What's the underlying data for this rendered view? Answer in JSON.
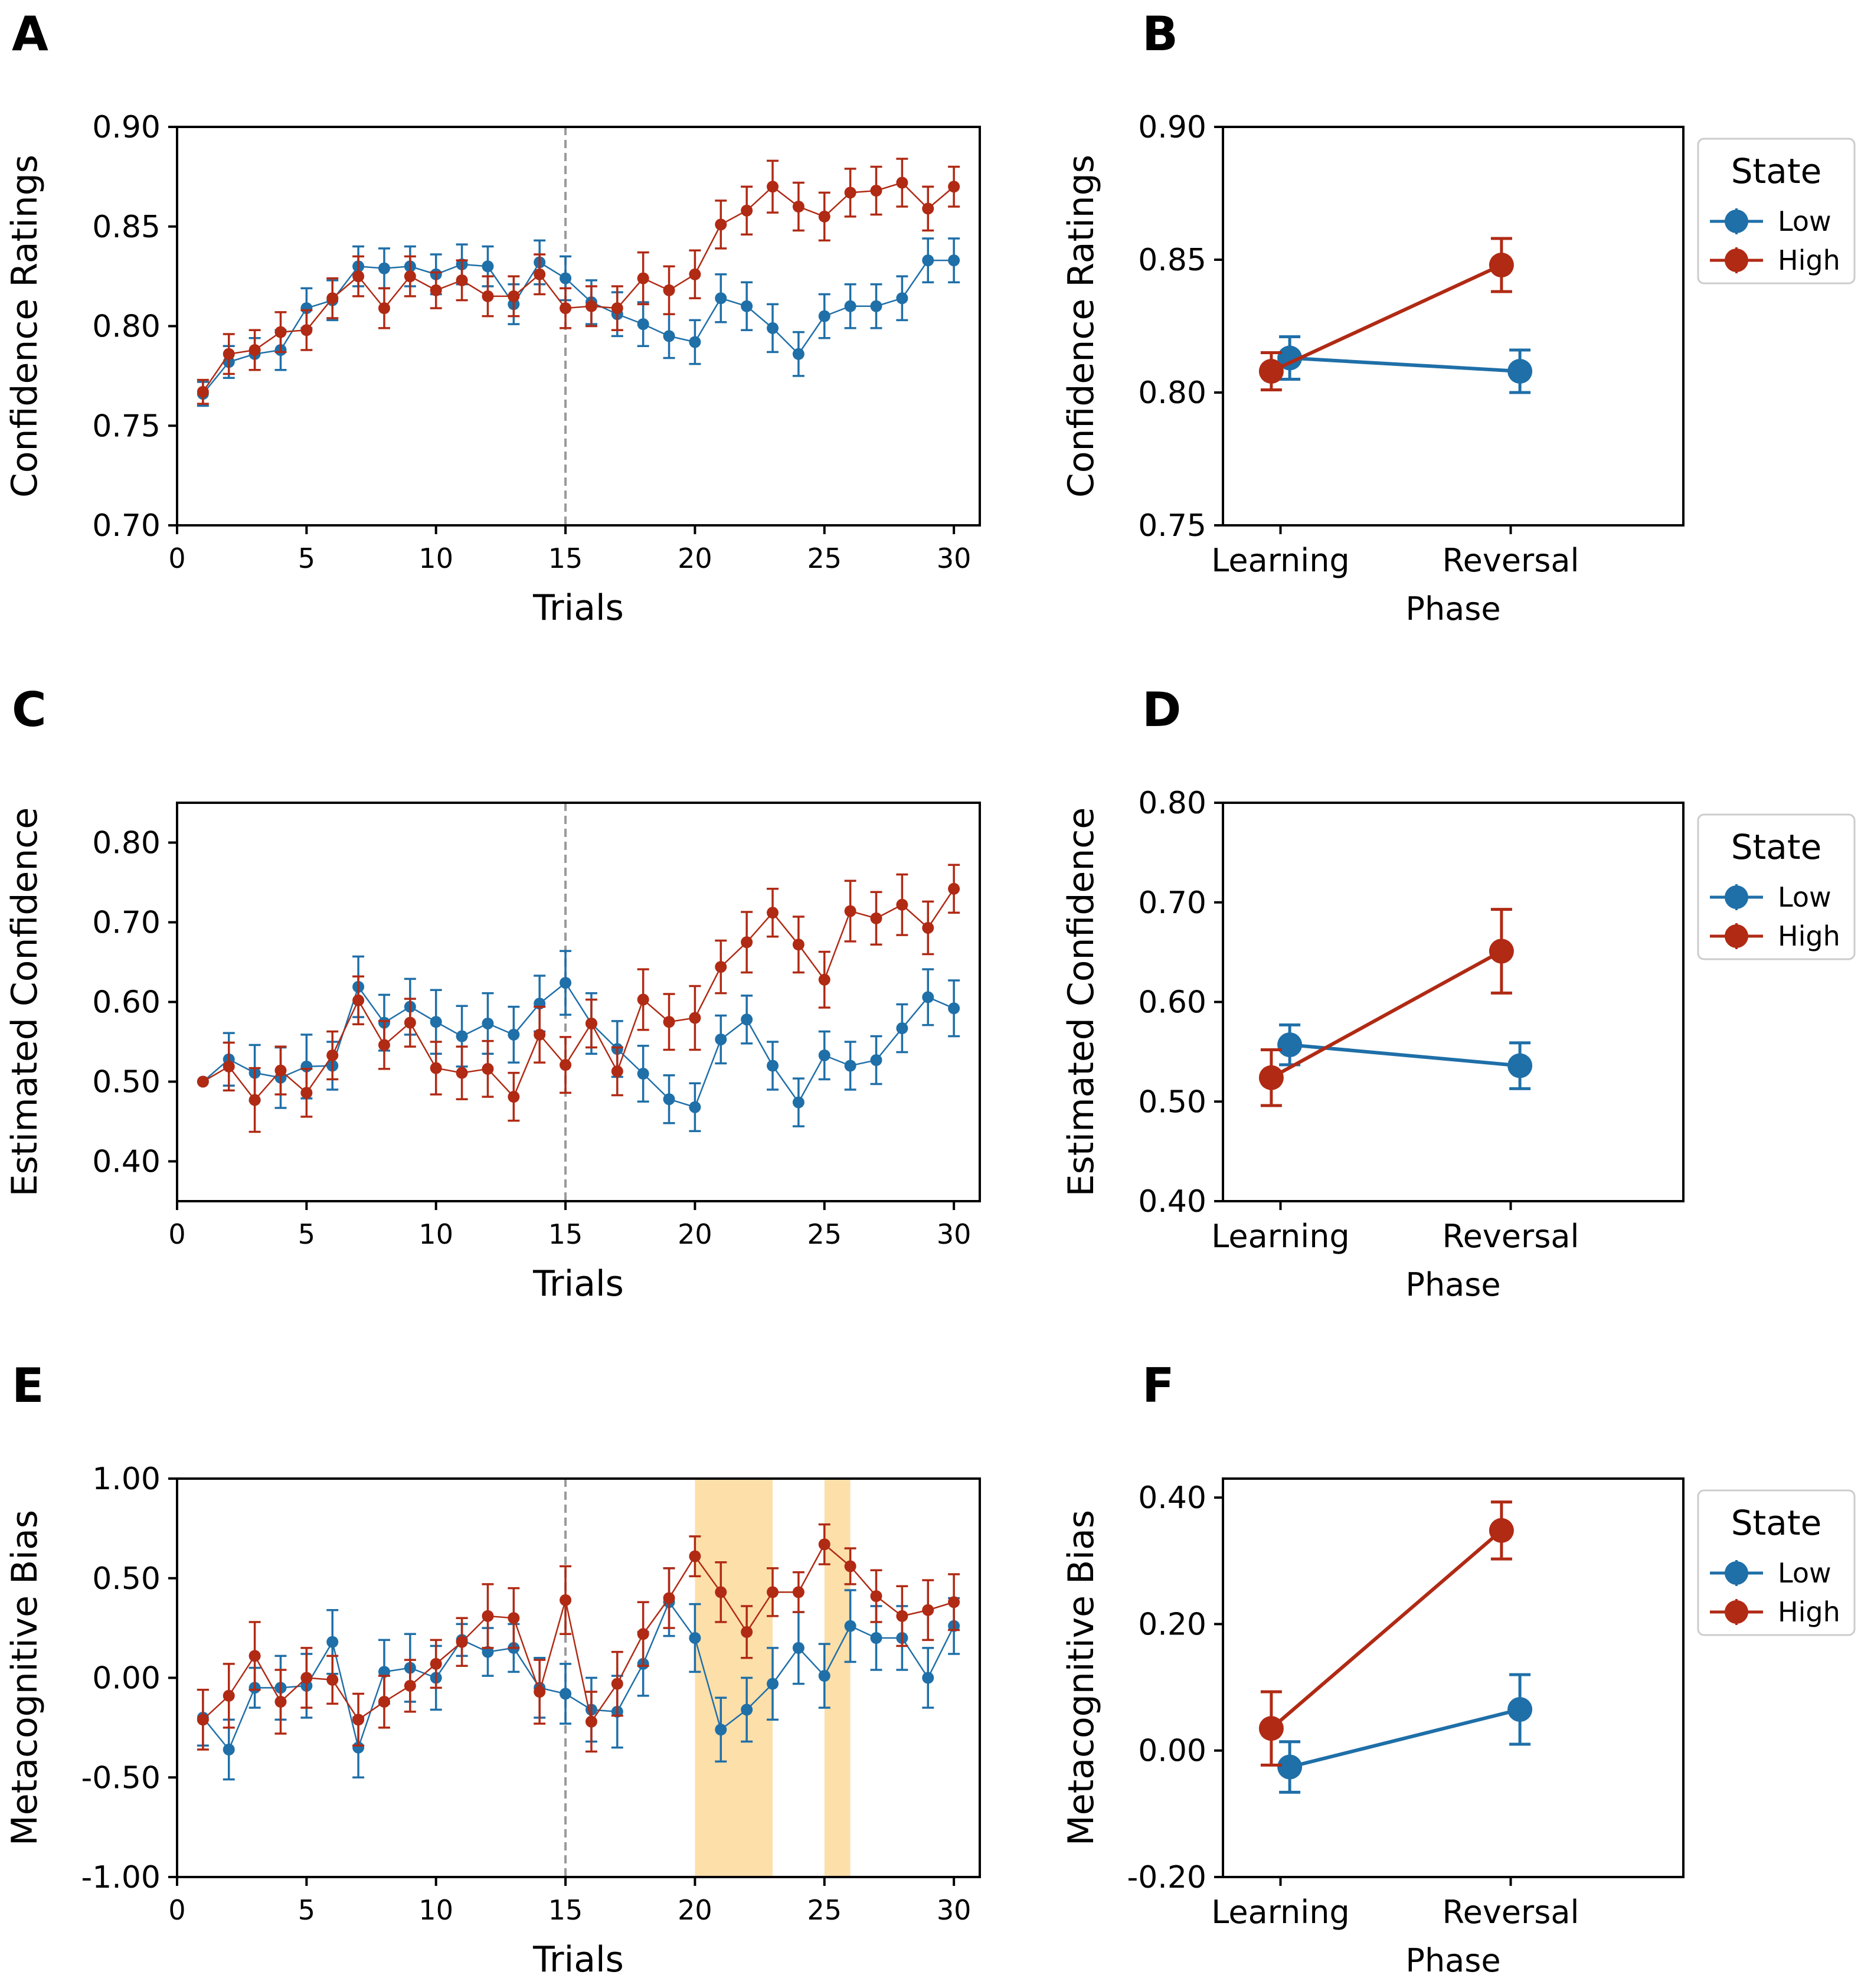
{
  "colors": {
    "low": "#1f6fa8",
    "high": "#b02a14",
    "vline": "#999999",
    "shade": "#fdd99b",
    "frame": "#000000"
  },
  "chart_data": [
    {
      "id": "A",
      "panel_label": "A",
      "type": "line",
      "xlabel": "Trials",
      "ylabel": "Confidence Ratings",
      "xlim": [
        0,
        31
      ],
      "ylim": [
        0.7,
        0.9
      ],
      "xticks": [
        0,
        5,
        10,
        15,
        20,
        25,
        30
      ],
      "xtick_labels": [
        "0",
        "5",
        "10",
        "15",
        "20",
        "25",
        "30"
      ],
      "yticks": [
        0.7,
        0.75,
        0.8,
        0.85,
        0.9
      ],
      "ytick_labels": [
        "0.70",
        "0.75",
        "0.80",
        "0.85",
        "0.90"
      ],
      "vline": 15,
      "shaded": [],
      "x": [
        1,
        2,
        3,
        4,
        5,
        6,
        7,
        8,
        9,
        10,
        11,
        12,
        13,
        14,
        15,
        16,
        17,
        18,
        19,
        20,
        21,
        22,
        23,
        24,
        25,
        26,
        27,
        28,
        29,
        30
      ],
      "series": [
        {
          "name": "Low",
          "color_key": "low",
          "values": [
            0.766,
            0.782,
            0.786,
            0.788,
            0.809,
            0.813,
            0.83,
            0.829,
            0.83,
            0.826,
            0.831,
            0.83,
            0.811,
            0.832,
            0.824,
            0.812,
            0.806,
            0.801,
            0.795,
            0.792,
            0.814,
            0.81,
            0.799,
            0.786,
            0.805,
            0.81,
            0.81,
            0.814,
            0.833,
            0.833
          ],
          "err": [
            0.006,
            0.008,
            0.008,
            0.01,
            0.01,
            0.01,
            0.01,
            0.01,
            0.01,
            0.01,
            0.01,
            0.01,
            0.01,
            0.011,
            0.011,
            0.011,
            0.011,
            0.011,
            0.011,
            0.011,
            0.012,
            0.012,
            0.012,
            0.011,
            0.011,
            0.011,
            0.011,
            0.011,
            0.011,
            0.011
          ]
        },
        {
          "name": "High",
          "color_key": "high",
          "values": [
            0.767,
            0.786,
            0.788,
            0.797,
            0.798,
            0.814,
            0.825,
            0.809,
            0.825,
            0.818,
            0.823,
            0.815,
            0.815,
            0.826,
            0.809,
            0.81,
            0.809,
            0.824,
            0.818,
            0.826,
            0.851,
            0.858,
            0.87,
            0.86,
            0.855,
            0.867,
            0.868,
            0.872,
            0.859,
            0.87
          ],
          "err": [
            0.006,
            0.01,
            0.01,
            0.01,
            0.01,
            0.01,
            0.01,
            0.01,
            0.01,
            0.009,
            0.01,
            0.01,
            0.01,
            0.01,
            0.01,
            0.01,
            0.011,
            0.013,
            0.012,
            0.012,
            0.012,
            0.012,
            0.013,
            0.012,
            0.012,
            0.012,
            0.012,
            0.012,
            0.011,
            0.01
          ]
        }
      ]
    },
    {
      "id": "B",
      "panel_label": "B",
      "type": "line",
      "xlabel": "Phase",
      "ylabel": "Confidence Ratings",
      "categories": [
        "Learning",
        "Reversal"
      ],
      "ylim": [
        0.75,
        0.9
      ],
      "yticks": [
        0.75,
        0.8,
        0.85,
        0.9
      ],
      "ytick_labels": [
        "0.75",
        "0.80",
        "0.85",
        "0.90"
      ],
      "legend": {
        "title": "State",
        "position": "outside-right",
        "entries": [
          "Low",
          "High"
        ]
      },
      "series": [
        {
          "name": "Low",
          "color_key": "low",
          "values": [
            0.813,
            0.808
          ],
          "err": [
            0.008,
            0.008
          ]
        },
        {
          "name": "High",
          "color_key": "high",
          "values": [
            0.808,
            0.848
          ],
          "err": [
            0.007,
            0.01
          ]
        }
      ]
    },
    {
      "id": "C",
      "panel_label": "C",
      "type": "line",
      "xlabel": "Trials",
      "ylabel": "Estimated Confidence",
      "xlim": [
        0,
        31
      ],
      "ylim": [
        0.35,
        0.85
      ],
      "xticks": [
        0,
        5,
        10,
        15,
        20,
        25,
        30
      ],
      "xtick_labels": [
        "0",
        "5",
        "10",
        "15",
        "20",
        "25",
        "30"
      ],
      "yticks": [
        0.4,
        0.5,
        0.6,
        0.7,
        0.8
      ],
      "ytick_labels": [
        "0.40",
        "0.50",
        "0.60",
        "0.70",
        "0.80"
      ],
      "vline": 15,
      "shaded": [],
      "x": [
        1,
        2,
        3,
        4,
        5,
        6,
        7,
        8,
        9,
        10,
        11,
        12,
        13,
        14,
        15,
        16,
        17,
        18,
        19,
        20,
        21,
        22,
        23,
        24,
        25,
        26,
        27,
        28,
        29,
        30
      ],
      "series": [
        {
          "name": "Low",
          "color_key": "low",
          "values": [
            0.5,
            0.528,
            0.511,
            0.505,
            0.519,
            0.52,
            0.619,
            0.574,
            0.594,
            0.575,
            0.557,
            0.573,
            0.559,
            0.598,
            0.624,
            0.573,
            0.541,
            0.51,
            0.478,
            0.468,
            0.553,
            0.578,
            0.52,
            0.474,
            0.533,
            0.52,
            0.527,
            0.567,
            0.606,
            0.592
          ],
          "err": [
            0.0,
            0.033,
            0.035,
            0.038,
            0.04,
            0.03,
            0.038,
            0.035,
            0.035,
            0.04,
            0.038,
            0.038,
            0.035,
            0.035,
            0.04,
            0.038,
            0.035,
            0.035,
            0.03,
            0.03,
            0.03,
            0.03,
            0.03,
            0.03,
            0.03,
            0.03,
            0.03,
            0.03,
            0.035,
            0.035
          ]
        },
        {
          "name": "High",
          "color_key": "high",
          "values": [
            0.5,
            0.519,
            0.477,
            0.514,
            0.486,
            0.533,
            0.602,
            0.546,
            0.574,
            0.517,
            0.511,
            0.516,
            0.481,
            0.559,
            0.521,
            0.573,
            0.513,
            0.603,
            0.575,
            0.58,
            0.644,
            0.675,
            0.712,
            0.672,
            0.628,
            0.714,
            0.705,
            0.722,
            0.693,
            0.742
          ],
          "err": [
            0.0,
            0.03,
            0.04,
            0.03,
            0.03,
            0.03,
            0.03,
            0.03,
            0.03,
            0.033,
            0.033,
            0.035,
            0.03,
            0.035,
            0.035,
            0.03,
            0.03,
            0.038,
            0.035,
            0.04,
            0.033,
            0.038,
            0.03,
            0.035,
            0.035,
            0.038,
            0.033,
            0.038,
            0.033,
            0.03
          ]
        }
      ]
    },
    {
      "id": "D",
      "panel_label": "D",
      "type": "line",
      "xlabel": "Phase",
      "ylabel": "Estimated Confidence",
      "categories": [
        "Learning",
        "Reversal"
      ],
      "ylim": [
        0.4,
        0.8
      ],
      "yticks": [
        0.4,
        0.5,
        0.6,
        0.7,
        0.8
      ],
      "ytick_labels": [
        "0.40",
        "0.50",
        "0.60",
        "0.70",
        "0.80"
      ],
      "legend": {
        "title": "State",
        "position": "outside-right",
        "entries": [
          "Low",
          "High"
        ]
      },
      "series": [
        {
          "name": "Low",
          "color_key": "low",
          "values": [
            0.557,
            0.536
          ],
          "err": [
            0.02,
            0.023
          ]
        },
        {
          "name": "High",
          "color_key": "high",
          "values": [
            0.524,
            0.651
          ],
          "err": [
            0.028,
            0.042
          ]
        }
      ]
    },
    {
      "id": "E",
      "panel_label": "E",
      "type": "line",
      "xlabel": "Trials",
      "ylabel": "Metacognitive Bias",
      "xlim": [
        0,
        31
      ],
      "ylim": [
        -1.0,
        1.0
      ],
      "xticks": [
        0,
        5,
        10,
        15,
        20,
        25,
        30
      ],
      "xtick_labels": [
        "0",
        "5",
        "10",
        "15",
        "20",
        "25",
        "30"
      ],
      "yticks": [
        -1.0,
        -0.5,
        0.0,
        0.5,
        1.0
      ],
      "ytick_labels": [
        "-1.00",
        "-0.50",
        "0.00",
        "0.50",
        "1.00"
      ],
      "vline": 15,
      "shaded": [
        [
          20,
          23
        ],
        [
          25,
          26
        ]
      ],
      "x": [
        1,
        2,
        3,
        4,
        5,
        6,
        7,
        8,
        9,
        10,
        11,
        12,
        13,
        14,
        15,
        16,
        17,
        18,
        19,
        20,
        21,
        22,
        23,
        24,
        25,
        26,
        27,
        28,
        29,
        30
      ],
      "series": [
        {
          "name": "Low",
          "color_key": "low",
          "values": [
            -0.2,
            -0.36,
            -0.05,
            -0.05,
            -0.04,
            0.18,
            -0.35,
            0.03,
            0.05,
            0.0,
            0.19,
            0.13,
            0.15,
            -0.05,
            -0.08,
            -0.16,
            -0.17,
            0.07,
            0.38,
            0.2,
            -0.26,
            -0.16,
            -0.03,
            0.15,
            0.01,
            0.26,
            0.2,
            0.2,
            0.0,
            0.26
          ],
          "err": [
            0.14,
            0.15,
            0.1,
            0.16,
            0.16,
            0.16,
            0.15,
            0.16,
            0.17,
            0.16,
            0.08,
            0.12,
            0.12,
            0.15,
            0.15,
            0.16,
            0.18,
            0.16,
            0.17,
            0.17,
            0.16,
            0.16,
            0.18,
            0.18,
            0.16,
            0.18,
            0.16,
            0.16,
            0.15,
            0.14
          ]
        },
        {
          "name": "High",
          "color_key": "high",
          "values": [
            -0.21,
            -0.09,
            0.11,
            -0.12,
            0.0,
            -0.01,
            -0.21,
            -0.12,
            -0.04,
            0.07,
            0.18,
            0.31,
            0.3,
            -0.07,
            0.39,
            -0.22,
            -0.03,
            0.22,
            0.4,
            0.61,
            0.43,
            0.23,
            0.43,
            0.43,
            0.67,
            0.56,
            0.41,
            0.31,
            0.34,
            0.38
          ],
          "err": [
            0.15,
            0.16,
            0.17,
            0.16,
            0.15,
            0.12,
            0.13,
            0.13,
            0.13,
            0.12,
            0.12,
            0.16,
            0.15,
            0.16,
            0.17,
            0.15,
            0.16,
            0.16,
            0.15,
            0.1,
            0.15,
            0.13,
            0.12,
            0.1,
            0.1,
            0.09,
            0.13,
            0.15,
            0.15,
            0.14
          ]
        }
      ]
    },
    {
      "id": "F",
      "panel_label": "F",
      "type": "line",
      "xlabel": "Phase",
      "ylabel": "Metacognitive Bias",
      "categories": [
        "Learning",
        "Reversal"
      ],
      "ylim": [
        -0.2,
        0.43
      ],
      "yticks": [
        -0.2,
        0.0,
        0.2,
        0.4
      ],
      "ytick_labels": [
        "-0.20",
        "0.00",
        "0.20",
        "0.40"
      ],
      "legend": {
        "title": "State",
        "position": "outside-right",
        "entries": [
          "Low",
          "High"
        ]
      },
      "series": [
        {
          "name": "Low",
          "color_key": "low",
          "values": [
            -0.026,
            0.065
          ],
          "err": [
            0.04,
            0.055
          ]
        },
        {
          "name": "High",
          "color_key": "high",
          "values": [
            0.035,
            0.348
          ],
          "err": [
            0.058,
            0.045
          ]
        }
      ]
    }
  ]
}
